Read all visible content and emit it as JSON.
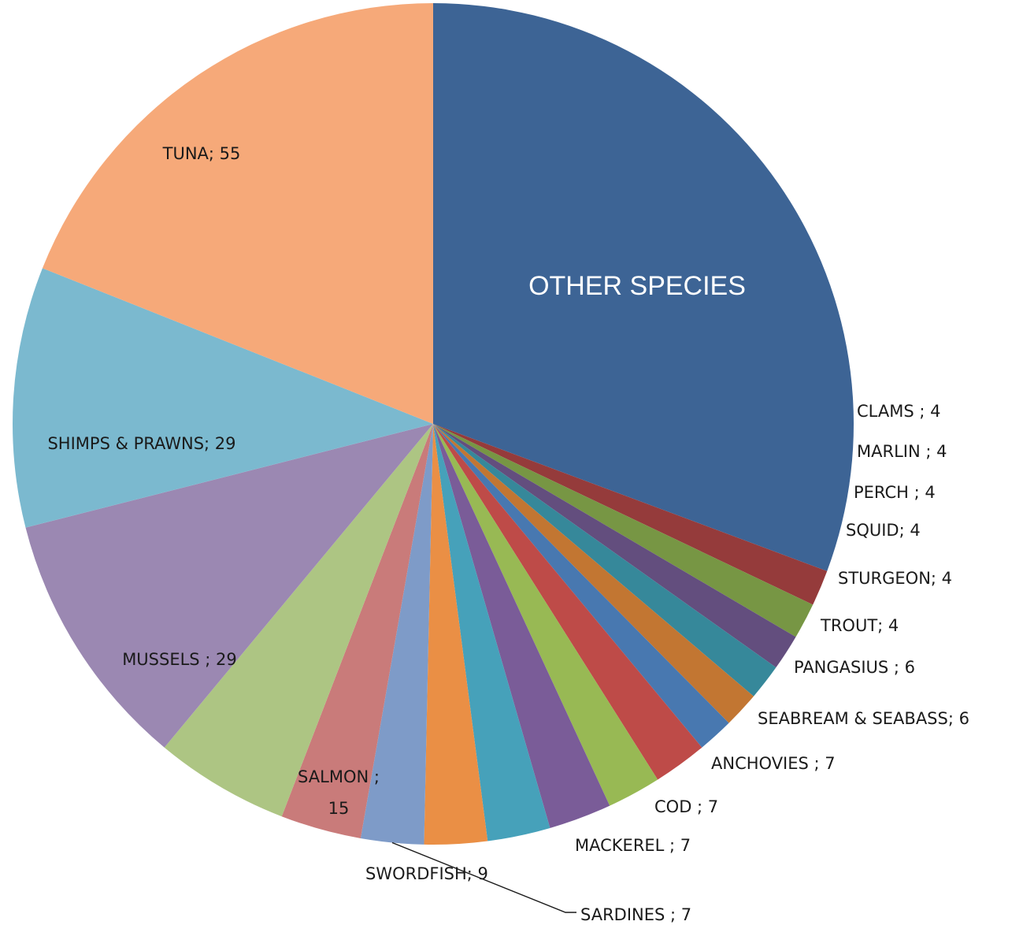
{
  "chart_data": {
    "type": "pie",
    "title": "",
    "start_angle_deg": 0,
    "direction": "clockwise",
    "slices": [
      {
        "label": "OTHER SPECIES",
        "value": 89,
        "color": "#3D6495"
      },
      {
        "label": "CLAMS",
        "value": 4,
        "color": "#953B3B",
        "text": "CLAMS ; 4"
      },
      {
        "label": "MARLIN",
        "value": 4,
        "color": "#779644",
        "text": "MARLIN ; 4"
      },
      {
        "label": "PERCH",
        "value": 4,
        "color": "#634E7E",
        "text": "PERCH ; 4"
      },
      {
        "label": "SQUID",
        "value": 4,
        "color": "#36889A",
        "text": "SQUID; 4"
      },
      {
        "label": "STURGEON",
        "value": 4,
        "color": "#C27632",
        "text": "STURGEON; 4"
      },
      {
        "label": "TROUT",
        "value": 4,
        "color": "#4878B0",
        "text": "TROUT; 4"
      },
      {
        "label": "PANGASIUS",
        "value": 6,
        "color": "#BE4B48",
        "text": "PANGASIUS ; 6"
      },
      {
        "label": "SEABREAM & SEABASS",
        "value": 6,
        "color": "#98B954",
        "text": "SEABREAM & SEABASS; 6"
      },
      {
        "label": "ANCHOVIES",
        "value": 7,
        "color": "#7A5C98",
        "text": "ANCHOVIES ; 7"
      },
      {
        "label": "COD",
        "value": 7,
        "color": "#46A1BA",
        "text": "COD ; 7"
      },
      {
        "label": "MACKEREL",
        "value": 7,
        "color": "#EA8F45",
        "text": "MACKEREL ; 7"
      },
      {
        "label": "SARDINES",
        "value": 7,
        "color": "#7E9BC8",
        "text": "SARDINES ; 7"
      },
      {
        "label": "SWORDFISH",
        "value": 9,
        "color": "#C97B7A",
        "text": "SWORDFISH; 9"
      },
      {
        "label": "SALMON",
        "value": 15,
        "color": "#ADC583",
        "text": "SALMON ;",
        "text2": "15"
      },
      {
        "label": "MUSSELS",
        "value": 29,
        "color": "#9B88B2",
        "text": "MUSSELS ; 29"
      },
      {
        "label": "SHIMPS & PRAWNS",
        "value": 29,
        "color": "#7BB9CF",
        "text": "SHIMPS & PRAWNS; 29"
      },
      {
        "label": "TUNA",
        "value": 55,
        "color": "#F6A979",
        "text": "TUNA; 55"
      }
    ]
  },
  "annotation": {
    "text": "OTHER SPECIES",
    "box_color": "#00649B"
  }
}
